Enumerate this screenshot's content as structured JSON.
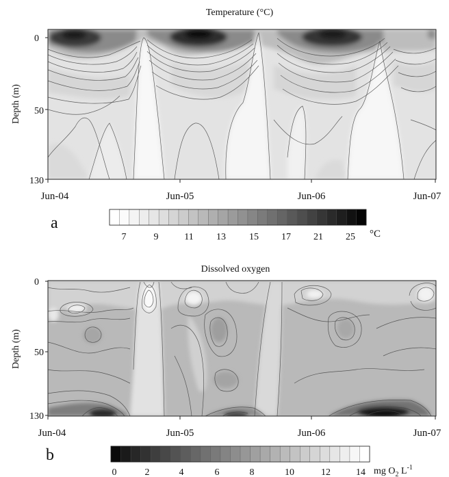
{
  "chart_data": [
    {
      "type": "heatmap",
      "panel_label": "a",
      "title": "Temperature (°C)",
      "ylabel": "Depth (m)",
      "x_ticks": [
        "Jun-04",
        "Jun-05",
        "Jun-06",
        "Jun-07"
      ],
      "y_ticks": [
        "0",
        "50",
        "130"
      ],
      "x_range": [
        "2004-06",
        "2007-06"
      ],
      "y_range": [
        130,
        0
      ],
      "colorbar": {
        "ticks": [
          "7",
          "9",
          "11",
          "13",
          "15",
          "17",
          "21",
          "25"
        ],
        "unit": "°C",
        "range": [
          5,
          27
        ],
        "scale": "white (cold) to black (warm)"
      },
      "surface_maxima_x": [
        0.1,
        1.1,
        2.1
      ],
      "cold_column_x": [
        0.76,
        1.65,
        2.36
      ]
    },
    {
      "type": "heatmap",
      "panel_label": "b",
      "title": "Dissolved oxygen",
      "ylabel": "Depth (m)",
      "x_ticks": [
        "Jun-04",
        "Jun-05",
        "Jun-06",
        "Jun-07"
      ],
      "y_ticks": [
        "0",
        "50",
        "130"
      ],
      "x_range": [
        "2004-06",
        "2007-06"
      ],
      "y_range": [
        130,
        0
      ],
      "colorbar": {
        "ticks": [
          "0",
          "2",
          "4",
          "6",
          "8",
          "10",
          "12",
          "14"
        ],
        "unit_prefix": "mg O",
        "unit_sub": "2",
        "unit_mid": " L",
        "unit_sup": "-1",
        "range": [
          0,
          15
        ],
        "scale": "black (low) to white (high)"
      },
      "bottom_minima_x": [
        0.42,
        1.4,
        2.45
      ]
    }
  ]
}
